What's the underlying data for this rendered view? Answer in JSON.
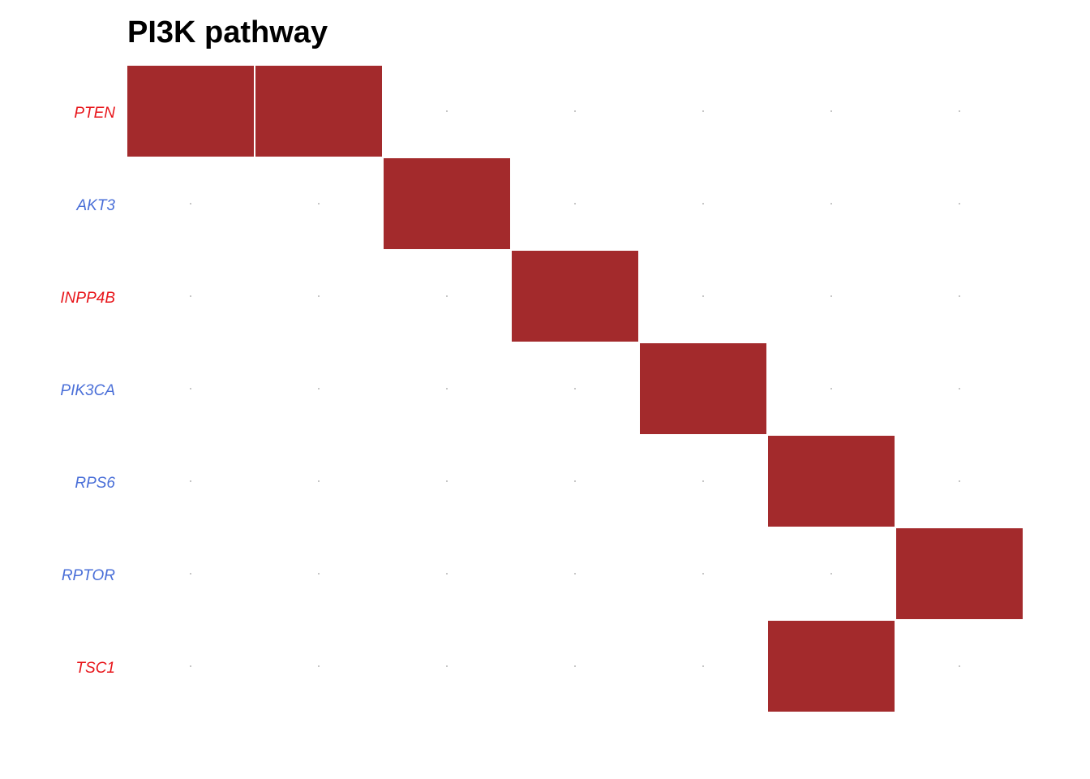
{
  "chart_data": {
    "type": "heatmap",
    "title": "PI3K pathway",
    "genes": [
      {
        "name": "PTEN",
        "color": "#e8161b"
      },
      {
        "name": "AKT3",
        "color": "#4a6fd8"
      },
      {
        "name": "INPP4B",
        "color": "#e8161b"
      },
      {
        "name": "PIK3CA",
        "color": "#4a6fd8"
      },
      {
        "name": "RPS6",
        "color": "#4a6fd8"
      },
      {
        "name": "RPTOR",
        "color": "#4a6fd8"
      },
      {
        "name": "TSC1",
        "color": "#e8161b"
      }
    ],
    "sample_count": 7,
    "altered": [
      [
        1,
        1,
        0,
        0,
        0,
        0,
        0
      ],
      [
        0,
        0,
        1,
        0,
        0,
        0,
        0
      ],
      [
        0,
        0,
        0,
        1,
        0,
        0,
        0
      ],
      [
        0,
        0,
        0,
        0,
        1,
        0,
        0
      ],
      [
        0,
        0,
        0,
        0,
        0,
        1,
        0
      ],
      [
        0,
        0,
        0,
        0,
        0,
        0,
        1
      ],
      [
        0,
        0,
        0,
        0,
        0,
        1,
        0
      ]
    ],
    "alteration_color": "#a32a2c",
    "background_dot_color": "#9e9e9e",
    "grid": false,
    "legend": "none"
  }
}
